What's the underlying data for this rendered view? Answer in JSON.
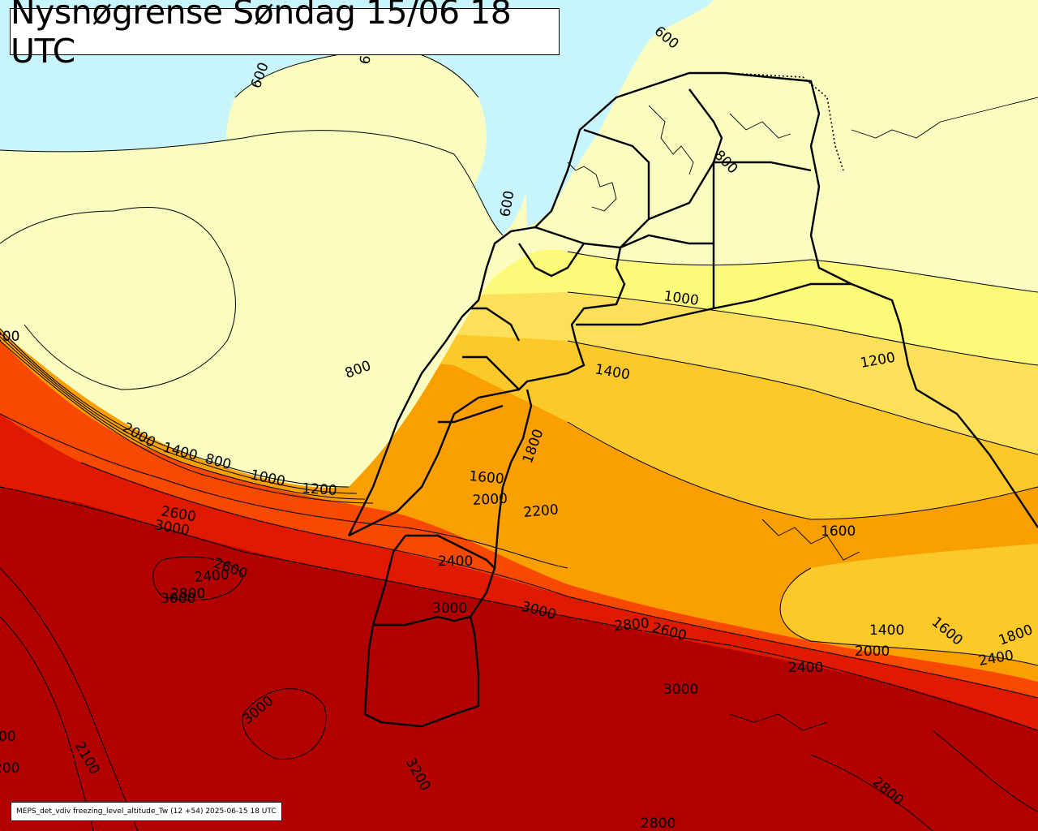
{
  "title": "Nysnøgrense Søndag 15/06 18 UTC",
  "footer": "MEPS_det_vdiv freezing_level_altitude_Tw (12 +54) 2025-06-15 18 UTC",
  "colors": {
    "sea": "#c8f4fc",
    "band_600_1000": "#fbfdc0",
    "band_1000_1400": "#fdfa7a",
    "band_1400_1600": "#fde05a",
    "band_1600_1800": "#fcc92a",
    "band_1800_2200": "#f9a000",
    "band_2200_2600": "#f74a00",
    "band_2600_3000": "#e01a00",
    "band_3000_plus": "#b00000",
    "border": "#000000"
  },
  "contour_labels": [
    {
      "text": "600",
      "id": "c600-a"
    },
    {
      "text": "600",
      "id": "c600-b"
    },
    {
      "text": "600",
      "id": "c600-c"
    },
    {
      "text": "6",
      "id": "c6-d"
    },
    {
      "text": "800",
      "id": "c800-a"
    },
    {
      "text": "800",
      "id": "c800-b"
    },
    {
      "text": "800",
      "id": "c800-c"
    },
    {
      "text": "1000",
      "id": "c1000-a"
    },
    {
      "text": "1000",
      "id": "c1000-b"
    },
    {
      "text": "1200",
      "id": "c1200-a"
    },
    {
      "text": "1200",
      "id": "c1200-b"
    },
    {
      "text": "1400",
      "id": "c1400-a"
    },
    {
      "text": "1400",
      "id": "c1400-b"
    },
    {
      "text": "1400",
      "id": "c1400-c"
    },
    {
      "text": "1600",
      "id": "c1600-a"
    },
    {
      "text": "1600",
      "id": "c1600-b"
    },
    {
      "text": "1600",
      "id": "c1600-c"
    },
    {
      "text": "1800",
      "id": "c1800-a"
    },
    {
      "text": "1800",
      "id": "c1800-b"
    },
    {
      "text": "2000",
      "id": "c2000-a"
    },
    {
      "text": "2000",
      "id": "c2000-b"
    },
    {
      "text": "2000",
      "id": "c2000-c"
    },
    {
      "text": "2200",
      "id": "c2200-a"
    },
    {
      "text": "2400",
      "id": "c2400-a"
    },
    {
      "text": "2400",
      "id": "c2400-b"
    },
    {
      "text": "2400",
      "id": "c2400-c"
    },
    {
      "text": "2400",
      "id": "c2400-d"
    },
    {
      "text": "2600",
      "id": "c2600-a"
    },
    {
      "text": "2600",
      "id": "c2600-b"
    },
    {
      "text": "2600",
      "id": "c2600-c"
    },
    {
      "text": "2800",
      "id": "c2800-a"
    },
    {
      "text": "2800",
      "id": "c2800-b"
    },
    {
      "text": "2800",
      "id": "c2800-c"
    },
    {
      "text": "2800",
      "id": "c2800-d"
    },
    {
      "text": "3000",
      "id": "c3000-a"
    },
    {
      "text": "3000",
      "id": "c3000-b"
    },
    {
      "text": "3000",
      "id": "c3000-c"
    },
    {
      "text": "3000",
      "id": "c3000-d"
    },
    {
      "text": "3000",
      "id": "c3000-e"
    },
    {
      "text": "3000",
      "id": "c3000-f"
    },
    {
      "text": "3200",
      "id": "c3200-a"
    },
    {
      "text": "2100",
      "id": "c2100-a"
    },
    {
      "text": "200",
      "id": "c200-edge"
    },
    {
      "text": "00",
      "id": "c00-edge"
    },
    {
      "text": "200",
      "id": "c200-edge2"
    }
  ]
}
